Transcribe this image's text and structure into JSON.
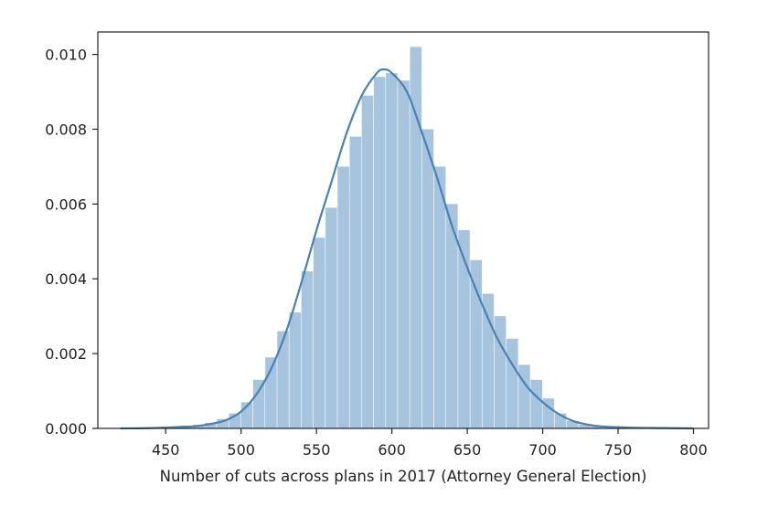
{
  "chart_data": {
    "type": "bar",
    "title": "",
    "xlabel": "Number of cuts across plans in 2017 (Attorney General Election)",
    "ylabel": "",
    "xlim": [
      405,
      810
    ],
    "ylim": [
      0,
      0.0106
    ],
    "xticks": [
      450,
      500,
      550,
      600,
      650,
      700,
      750,
      800
    ],
    "yticks": [
      0.0,
      0.002,
      0.004,
      0.006,
      0.008,
      0.01
    ],
    "ytick_labels": [
      "0.000",
      "0.002",
      "0.004",
      "0.006",
      "0.008",
      "0.010"
    ],
    "grid": false,
    "legend": "none",
    "colors": {
      "bars": "#a7c4de",
      "kde_line": "#4682b4",
      "axes": "#222222"
    },
    "series": [
      {
        "type": "histogram",
        "bin_edges": [
          420,
          428,
          436,
          444,
          452,
          460,
          468,
          476,
          484,
          492,
          500,
          508,
          516,
          524,
          532,
          540,
          548,
          556,
          564,
          572,
          580,
          588,
          596,
          604,
          612,
          620,
          628,
          636,
          644,
          652,
          660,
          668,
          676,
          684,
          692,
          700,
          708,
          716,
          724,
          732,
          740,
          748,
          756,
          764,
          772,
          780,
          788,
          796,
          802
        ],
        "values": [
          2e-05,
          2e-05,
          3e-05,
          4e-05,
          5e-05,
          7e-05,
          0.0001,
          0.00015,
          0.00025,
          0.0004,
          0.0007,
          0.0013,
          0.0019,
          0.0026,
          0.0031,
          0.0042,
          0.0051,
          0.0059,
          0.007,
          0.0078,
          0.0089,
          0.0094,
          0.0095,
          0.0093,
          0.0102,
          0.008,
          0.007,
          0.006,
          0.0053,
          0.0045,
          0.0036,
          0.003,
          0.0024,
          0.0017,
          0.0013,
          0.0008,
          0.0004,
          0.0002,
          0.0001,
          6e-05,
          3e-05,
          2e-05,
          1e-05,
          1e-05,
          5e-06,
          3e-06,
          2e-06,
          1e-06
        ]
      },
      {
        "type": "kde_line",
        "x": [
          420,
          440,
          460,
          470,
          480,
          490,
          500,
          510,
          520,
          530,
          540,
          550,
          560,
          570,
          580,
          590,
          595,
          600,
          610,
          620,
          630,
          640,
          650,
          660,
          670,
          680,
          690,
          700,
          710,
          720,
          730,
          740,
          760,
          780,
          800
        ],
        "y": [
          0.0,
          1e-05,
          4e-05,
          6e-05,
          0.00012,
          0.00022,
          0.00045,
          0.0009,
          0.0016,
          0.0026,
          0.0039,
          0.0053,
          0.0066,
          0.0079,
          0.0089,
          0.0095,
          0.0096,
          0.0095,
          0.009,
          0.0079,
          0.0067,
          0.0054,
          0.0043,
          0.0033,
          0.0024,
          0.0017,
          0.0011,
          0.0007,
          0.0004,
          0.0002,
          0.0001,
          5e-05,
          2e-05,
          1e-05,
          0.0
        ]
      }
    ]
  }
}
